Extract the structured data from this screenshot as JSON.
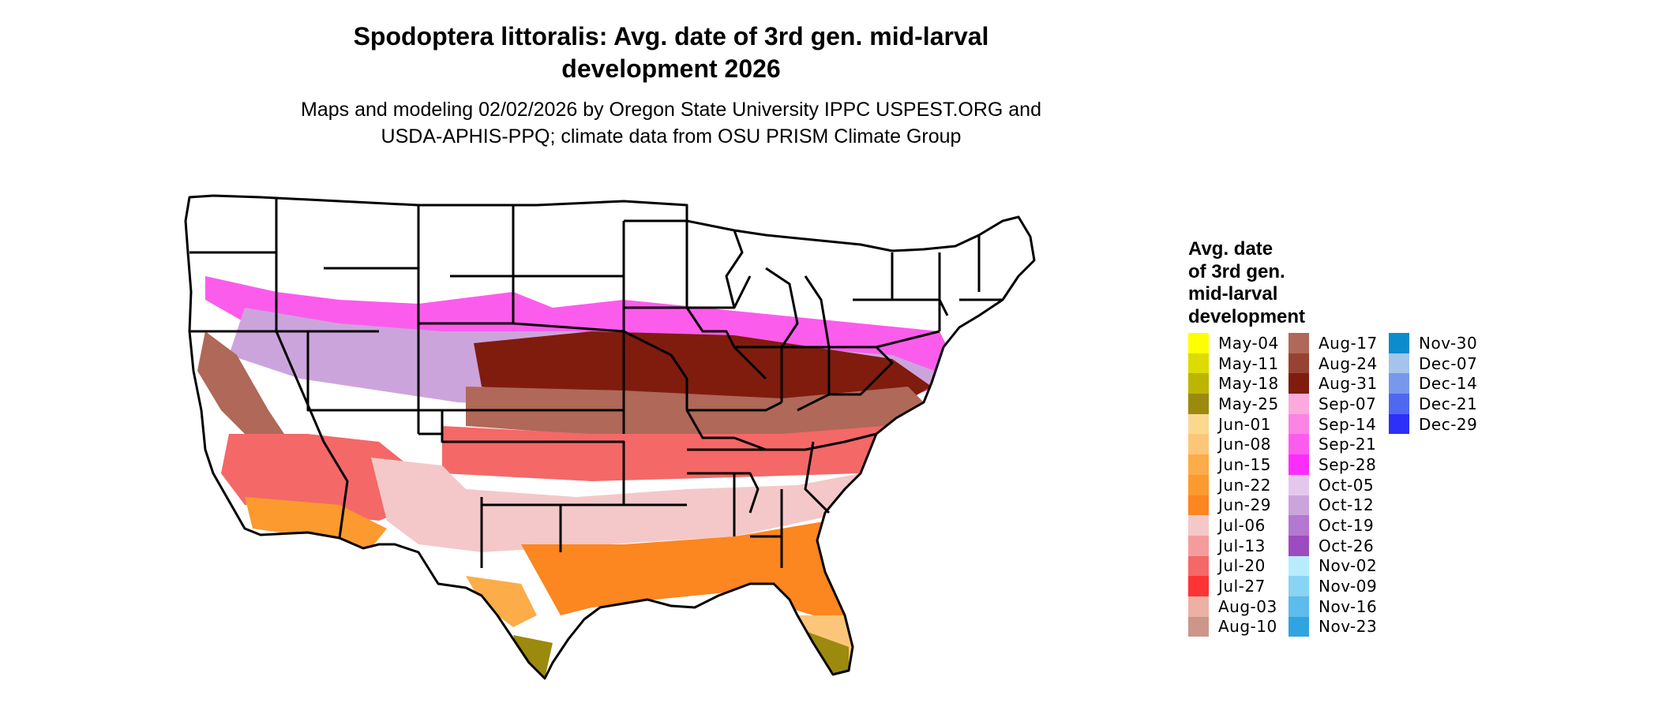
{
  "title": {
    "line1": "Spodoptera littoralis: Avg. date of 3rd gen. mid-larval",
    "line2": "development 2026"
  },
  "subtitle": {
    "line1": "Maps and modeling 02/02/2026 by Oregon State University IPPC USPEST.ORG and",
    "line2": "USDA-APHIS-PPQ; climate data from OSU PRISM Climate Group"
  },
  "legend": {
    "title_lines": [
      "Avg. date",
      "of 3rd gen.",
      "mid-larval",
      "development"
    ],
    "columns": [
      [
        {
          "label": "May-04",
          "color": "#ffff00"
        },
        {
          "label": "May-11",
          "color": "#dcdc00"
        },
        {
          "label": "May-18",
          "color": "#bcb600"
        },
        {
          "label": "May-25",
          "color": "#9c8a0e"
        },
        {
          "label": "Jun-01",
          "color": "#fbd88e"
        },
        {
          "label": "Jun-08",
          "color": "#fcc67a"
        },
        {
          "label": "Jun-15",
          "color": "#fcac48"
        },
        {
          "label": "Jun-22",
          "color": "#fc9a30"
        },
        {
          "label": "Jun-29",
          "color": "#fc8620"
        },
        {
          "label": "Jul-06",
          "color": "#f4c8c8"
        },
        {
          "label": "Jul-13",
          "color": "#f49c9c"
        },
        {
          "label": "Jul-20",
          "color": "#f46868"
        },
        {
          "label": "Jul-27",
          "color": "#fc3434"
        },
        {
          "label": "Aug-03",
          "color": "#ecb0a4"
        },
        {
          "label": "Aug-10",
          "color": "#cc968a"
        }
      ],
      [
        {
          "label": "Aug-17",
          "color": "#b06858"
        },
        {
          "label": "Aug-24",
          "color": "#984234"
        },
        {
          "label": "Aug-31",
          "color": "#801c0e"
        },
        {
          "label": "Sep-07",
          "color": "#fcaadc"
        },
        {
          "label": "Sep-14",
          "color": "#fc84e4"
        },
        {
          "label": "Sep-21",
          "color": "#fc5cec"
        },
        {
          "label": "Sep-28",
          "color": "#fc2cfc"
        },
        {
          "label": "Oct-05",
          "color": "#e4c8ec"
        },
        {
          "label": "Oct-12",
          "color": "#cca4dc"
        },
        {
          "label": "Oct-19",
          "color": "#b478d0"
        },
        {
          "label": "Oct-26",
          "color": "#9c4cc0"
        },
        {
          "label": "Nov-02",
          "color": "#b8ecfc"
        },
        {
          "label": "Nov-09",
          "color": "#88d4f4"
        },
        {
          "label": "Nov-16",
          "color": "#5cbcec"
        },
        {
          "label": "Nov-23",
          "color": "#30a4e0"
        }
      ],
      [
        {
          "label": "Nov-30",
          "color": "#0c8ccc"
        },
        {
          "label": "Dec-07",
          "color": "#a4c4ec"
        },
        {
          "label": "Dec-14",
          "color": "#7898ec"
        },
        {
          "label": "Dec-21",
          "color": "#5068f0"
        },
        {
          "label": "Dec-29",
          "color": "#2c30f8"
        }
      ]
    ]
  }
}
